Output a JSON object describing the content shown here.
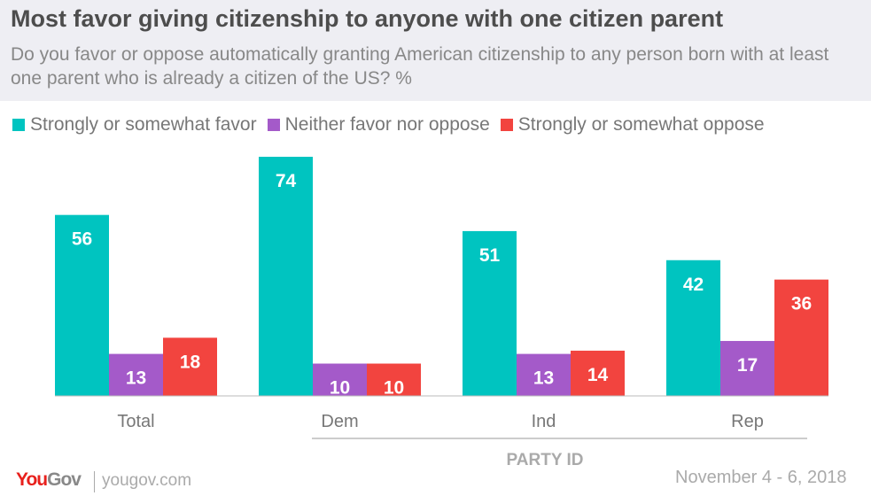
{
  "header": {
    "title": "Most favor giving citizenship to anyone with one citizen parent",
    "subtitle": "Do you favor or oppose automatically granting American citizenship to any person born with at least one parent who is already a citizen of the US? %"
  },
  "footer": {
    "brand": "YouGov",
    "site": "yougov.com",
    "date": "November 4 - 6, 2018"
  },
  "chart_data": {
    "type": "bar",
    "title": "Most favor giving citizenship to anyone with one citizen parent",
    "categories": [
      "Total",
      "Dem",
      "Ind",
      "Rep"
    ],
    "group_label": "PARTY ID",
    "series": [
      {
        "name": "Strongly or somewhat favor",
        "color": "#00c4c0",
        "values": [
          56,
          74,
          51,
          42
        ]
      },
      {
        "name": "Neither favor nor oppose",
        "color": "#a45ac9",
        "values": [
          13,
          10,
          13,
          17
        ]
      },
      {
        "name": "Strongly or somewhat oppose",
        "color": "#f2443f",
        "values": [
          18,
          10,
          14,
          36
        ]
      }
    ],
    "ylim": [
      0,
      74
    ],
    "legend": "top-left"
  }
}
